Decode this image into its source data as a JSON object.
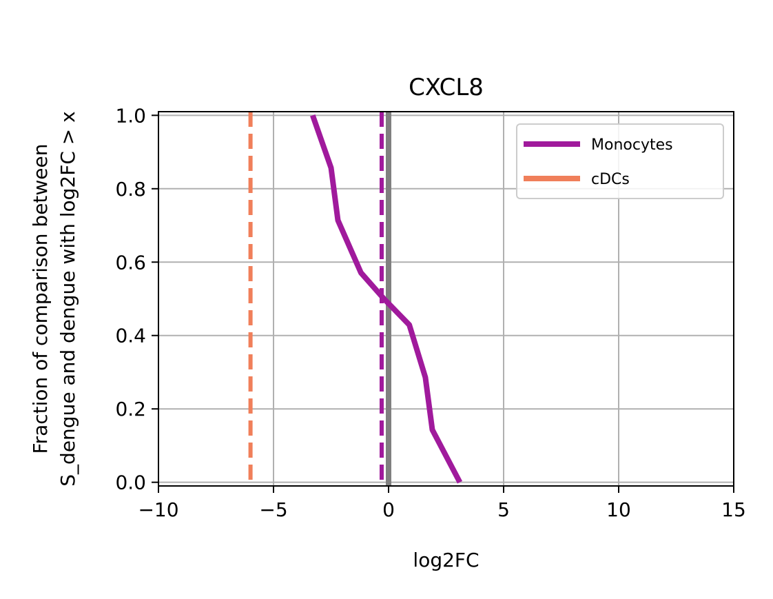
{
  "chart_data": {
    "type": "line",
    "title": "CXCL8",
    "xlabel": "log2FC",
    "ylabel_lines": [
      "Fraction of comparison between",
      "S_dengue and dengue with log2FC > x"
    ],
    "xlim": [
      -10,
      15
    ],
    "ylim": [
      -0.01,
      1.01
    ],
    "xticks": [
      -10,
      -5,
      0,
      5,
      10,
      15
    ],
    "xtick_labels": [
      "−10",
      "−5",
      "0",
      "5",
      "10",
      "15"
    ],
    "yticks": [
      0.0,
      0.2,
      0.4,
      0.6,
      0.8,
      1.0
    ],
    "ytick_labels": [
      "0.0",
      "0.2",
      "0.4",
      "0.6",
      "0.8",
      "1.0"
    ],
    "grid": true,
    "legend_position": "top-right",
    "series": [
      {
        "name": "Monocytes",
        "color": "#a01a9c",
        "x": [
          3.1,
          1.9,
          1.6,
          0.9,
          -0.2,
          -1.2,
          -2.2,
          -2.5,
          -3.3
        ],
        "y": [
          0.0,
          0.143,
          0.286,
          0.429,
          0.5,
          0.571,
          0.714,
          0.857,
          1.0
        ],
        "median": -0.3
      },
      {
        "name": "cDCs",
        "color": "#f07f5a",
        "x": [],
        "y": [],
        "median": -6.0
      }
    ],
    "reference_line": {
      "x": 0,
      "color": "#808080"
    }
  }
}
